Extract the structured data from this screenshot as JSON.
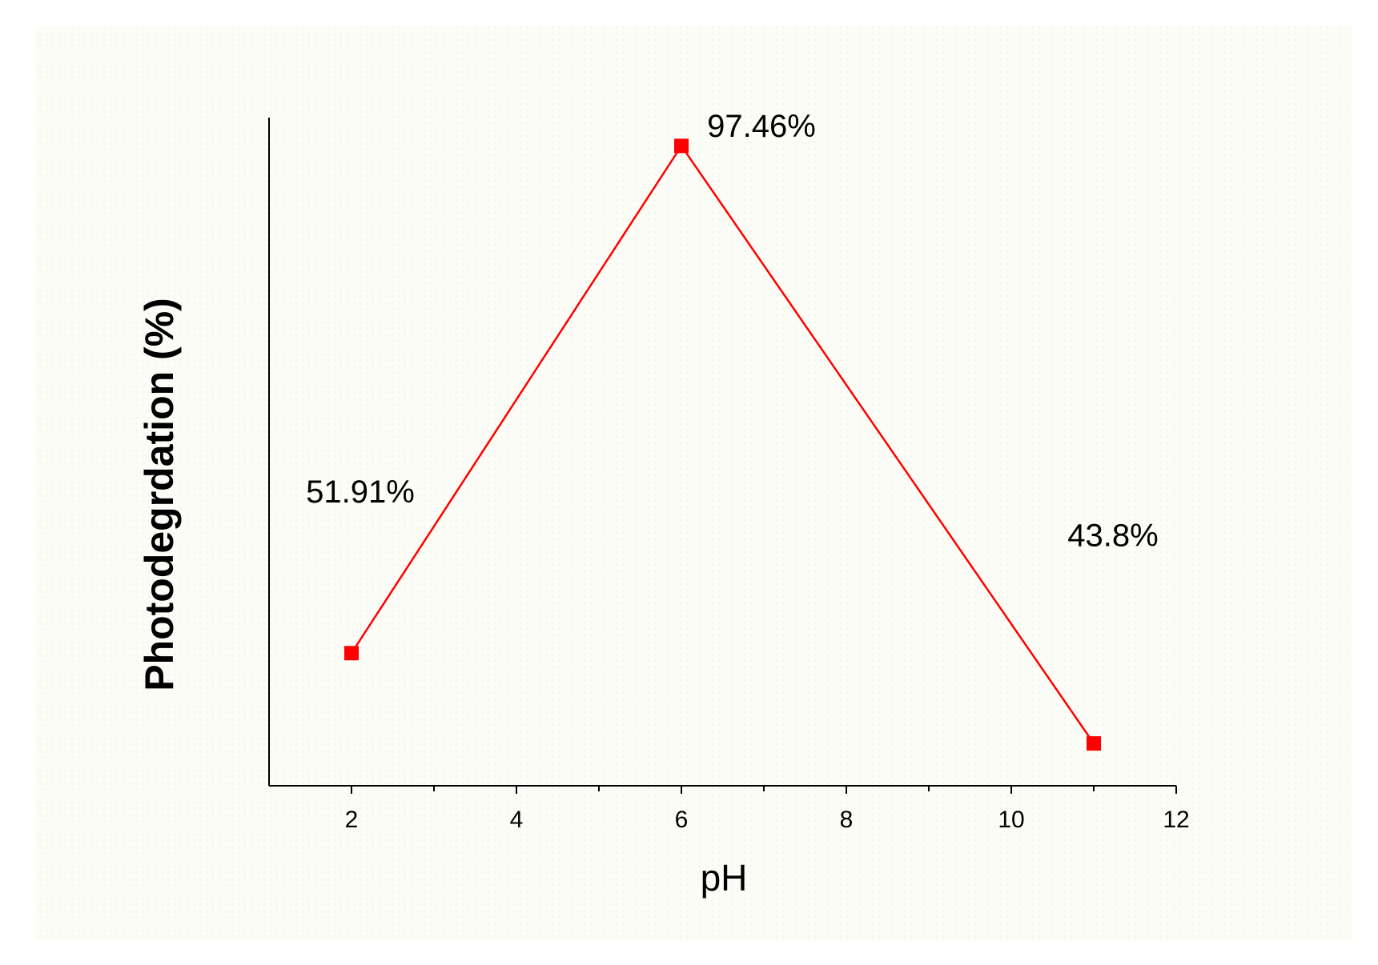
{
  "chart_data": {
    "type": "line",
    "x_label": "pH",
    "y_label": "Photodegrdation (%)",
    "x": [
      2,
      6,
      11
    ],
    "values": [
      51.91,
      97.46,
      43.8
    ],
    "value_labels": [
      "51.91%",
      "97.46%",
      "43.8%"
    ],
    "color": "#ff0000",
    "xlim": [
      1,
      12
    ],
    "xticks": [
      2,
      4,
      6,
      8,
      10,
      12
    ],
    "ylim": [
      40,
      100
    ],
    "grid": false
  }
}
